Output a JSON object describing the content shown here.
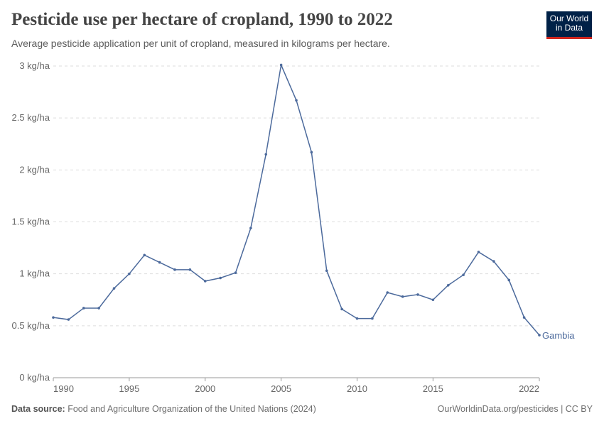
{
  "header": {
    "title": "Pesticide use per hectare of cropland, 1990 to 2022",
    "subtitle": "Average pesticide application per unit of cropland, measured in kilograms per hectare.",
    "logo": "Our World in Data"
  },
  "footer": {
    "source_label": "Data source:",
    "source_text": "Food and Agriculture Organization of the United Nations (2024)",
    "credit": "OurWorldinData.org/pesticides | CC BY"
  },
  "colors": {
    "series": "#4c6a9c",
    "grid": "#dddddd",
    "logo_bg": "#002147",
    "logo_accent": "#ce261e"
  },
  "chart_data": {
    "type": "line",
    "title": "Pesticide use per hectare of cropland, 1990 to 2022",
    "xlim": [
      1990,
      2022
    ],
    "ylim": [
      0,
      3
    ],
    "grid": "horizontal dashed",
    "legend": "end-label",
    "x_ticks": [
      "1990",
      "1995",
      "2000",
      "2005",
      "2010",
      "2015",
      "2022"
    ],
    "y_ticks": [
      "0 kg/ha",
      "0.5 kg/ha",
      "1 kg/ha",
      "1.5 kg/ha",
      "2 kg/ha",
      "2.5 kg/ha",
      "3 kg/ha"
    ],
    "series": [
      {
        "name": "Gambia",
        "x": [
          1990,
          1991,
          1992,
          1993,
          1994,
          1995,
          1996,
          1997,
          1998,
          1999,
          2000,
          2001,
          2002,
          2003,
          2004,
          2005,
          2006,
          2007,
          2008,
          2009,
          2010,
          2011,
          2012,
          2013,
          2014,
          2015,
          2016,
          2017,
          2018,
          2019,
          2020,
          2021,
          2022
        ],
        "y": [
          0.58,
          0.56,
          0.67,
          0.67,
          0.86,
          1.0,
          1.18,
          1.11,
          1.04,
          1.04,
          0.93,
          0.96,
          1.01,
          1.44,
          2.15,
          3.01,
          2.67,
          2.17,
          1.03,
          0.66,
          0.57,
          0.57,
          0.82,
          0.78,
          0.8,
          0.75,
          0.89,
          0.99,
          1.21,
          1.12,
          0.94,
          0.58,
          0.41
        ]
      }
    ]
  }
}
